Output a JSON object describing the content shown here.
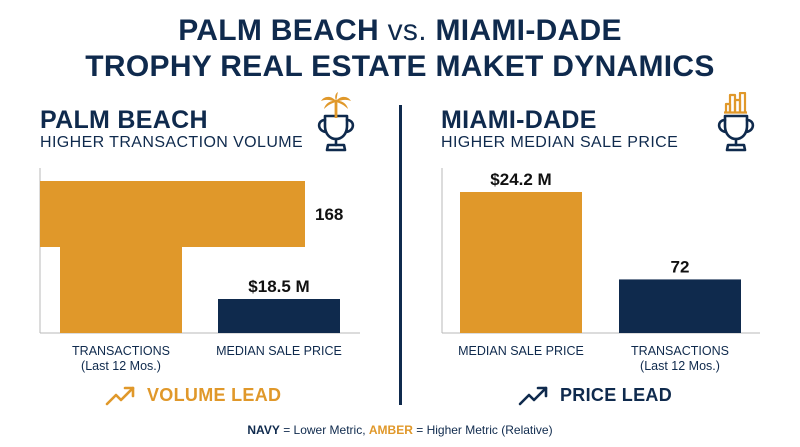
{
  "title": {
    "line1_a": "PALM BEACH",
    "line1_vs": "vs.",
    "line1_b": "MIAMI-DADE",
    "line2_a": "TROPHY REAL ESTATE",
    "line2_b": "MAKET DYNAMICS"
  },
  "colors": {
    "navy": "#0f2a4d",
    "amber": "#e0982a"
  },
  "left": {
    "title": "PALM BEACH",
    "subtitle": "HIGHER TRANSACTION VOLUME",
    "icon": "trophy-palm-icon",
    "lead_label": "VOLUME LEAD",
    "lead_icon": "trend-up-icon"
  },
  "right": {
    "title": "MIAMI-DADE",
    "subtitle": "HIGHER MEDIAN SALE PRICE",
    "icon": "trophy-city-icon",
    "lead_label": "PRICE LEAD",
    "lead_icon": "trend-up-icon"
  },
  "legend": {
    "navy_word": "NAVY",
    "navy_text": "= Lower Metric,",
    "amber_word": "AMBER",
    "amber_text": "= Higher Metric (Relative)"
  },
  "chart_data": [
    {
      "type": "bar",
      "panel": "Palm Beach",
      "highlight": {
        "orientation": "horizontal",
        "metric": "TRANSACTIONS",
        "value": 168,
        "label": "168",
        "color": "amber"
      },
      "bars": [
        {
          "category_lines": [
            "TRANSACTIONS",
            "(Last 12 Mos.)"
          ],
          "value": 168,
          "label": "",
          "color": "amber",
          "relative_height": 0.57
        },
        {
          "category_lines": [
            "MEDIAN SALE PRICE"
          ],
          "value": 18.5,
          "label": "$18.5 M",
          "color": "navy",
          "relative_height": 0.17
        }
      ]
    },
    {
      "type": "bar",
      "panel": "Miami-Dade",
      "bars": [
        {
          "category_lines": [
            "MEDIAN SALE PRICE"
          ],
          "value": 24.2,
          "label": "$24.2 M",
          "color": "amber",
          "relative_height": 1.0
        },
        {
          "category_lines": [
            "TRANSACTIONS",
            "(Last 12 Mos.)"
          ],
          "value": 72,
          "label": "72",
          "color": "navy",
          "relative_height": 0.38
        }
      ]
    }
  ]
}
